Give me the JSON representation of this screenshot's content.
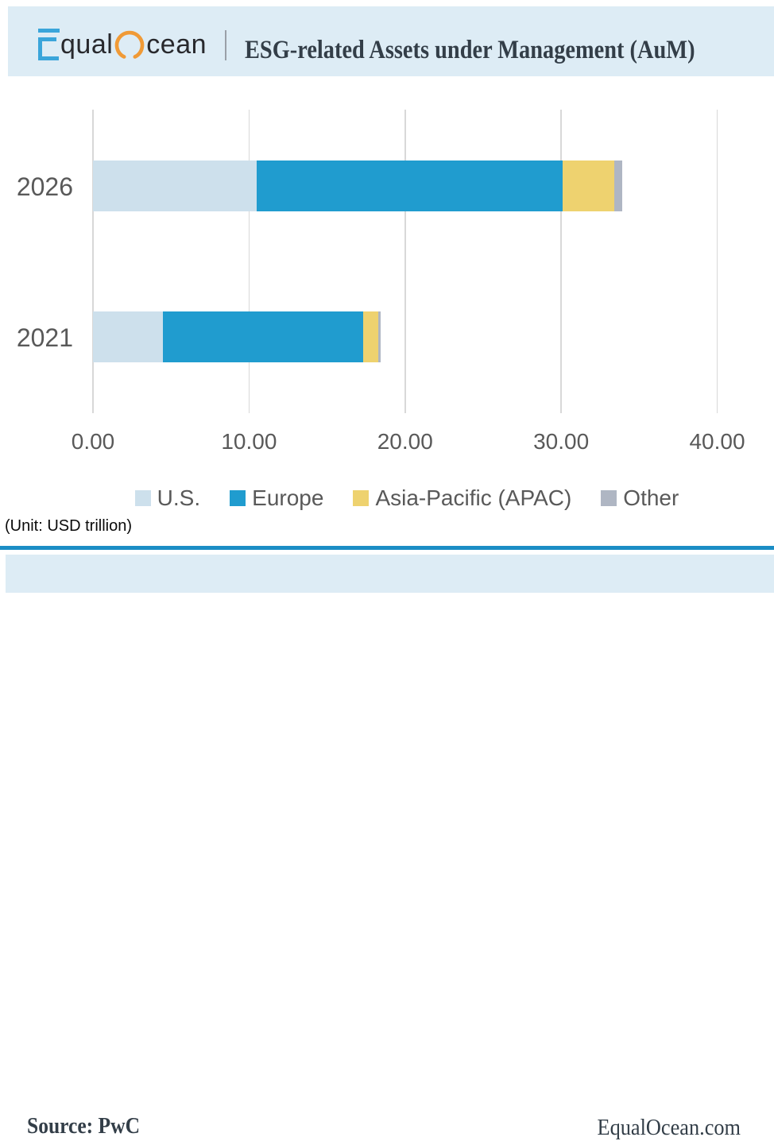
{
  "header": {
    "logo": {
      "part1": "qual",
      "part2": "cean",
      "e_color": "#3aa5da",
      "o_color": "#f09a36",
      "text_color": "#28292d"
    },
    "title": "ESG-related Assets under Management (AuM)"
  },
  "chart_data": {
    "type": "bar",
    "orientation": "horizontal",
    "stacked": true,
    "categories": [
      "2026",
      "2021"
    ],
    "series": [
      {
        "name": "U.S.",
        "color": "#cde0ec",
        "values": [
          10.5,
          4.5
        ]
      },
      {
        "name": "Europe",
        "color": "#209ccf",
        "values": [
          19.6,
          12.8
        ]
      },
      {
        "name": "Asia-Pacific (APAC)",
        "color": "#eed26f",
        "values": [
          3.3,
          1.0
        ]
      },
      {
        "name": "Other",
        "color": "#afb6c3",
        "values": [
          0.5,
          0.15
        ]
      }
    ],
    "totals": [
      33.9,
      18.45
    ],
    "xlim": [
      0,
      40
    ],
    "x_ticks": [
      "0.00",
      "10.00",
      "20.00",
      "30.00",
      "40.00"
    ],
    "grid": "vertical",
    "legend_position": "bottom",
    "unit_note": "(Unit: USD trillion)",
    "grid_color": "#d8d8d8",
    "label_color": "#595959"
  },
  "footer": {
    "source": "Source: PwC",
    "site": "EqualOcean.com",
    "rule_color": "#1b8dc5"
  }
}
